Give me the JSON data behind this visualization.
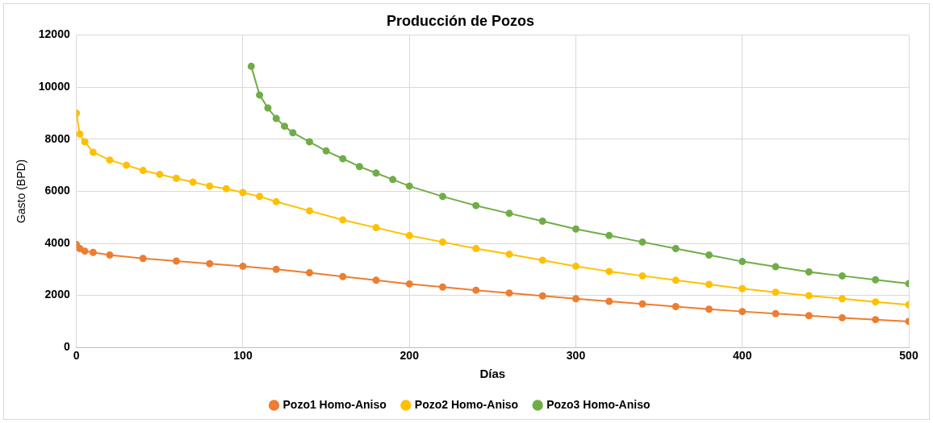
{
  "chart_data": {
    "type": "line",
    "title": "Producción de Pozos",
    "xlabel": "Días",
    "ylabel": "Gasto (BPD)",
    "xlim": [
      0,
      500
    ],
    "xticks": [
      0,
      100,
      200,
      300,
      400,
      500
    ],
    "ylim": [
      0,
      12000
    ],
    "yticks": [
      0,
      2000,
      4000,
      6000,
      8000,
      10000,
      12000
    ],
    "grid": true,
    "legend": "bottom",
    "marker": "circle",
    "line_style": "solid",
    "series": [
      {
        "name": "Pozo1 Homo-Aniso",
        "color": "#ed7d31",
        "x": [
          0,
          2,
          5,
          10,
          20,
          40,
          60,
          80,
          100,
          120,
          140,
          160,
          180,
          200,
          220,
          240,
          260,
          280,
          300,
          320,
          340,
          360,
          380,
          400,
          420,
          440,
          460,
          480,
          500
        ],
        "values": [
          3950,
          3800,
          3700,
          3650,
          3550,
          3420,
          3320,
          3220,
          3120,
          3000,
          2870,
          2720,
          2580,
          2440,
          2320,
          2200,
          2090,
          1980,
          1870,
          1770,
          1670,
          1570,
          1470,
          1380,
          1300,
          1220,
          1140,
          1070,
          1000
        ]
      },
      {
        "name": "Pozo2 Homo-Aniso",
        "color": "#ffc000",
        "x": [
          0,
          2,
          5,
          10,
          20,
          30,
          40,
          50,
          60,
          70,
          80,
          90,
          100,
          110,
          120,
          140,
          160,
          180,
          200,
          220,
          240,
          260,
          280,
          300,
          320,
          340,
          360,
          380,
          400,
          420,
          440,
          460,
          480,
          500
        ],
        "values": [
          9000,
          8200,
          7900,
          7500,
          7200,
          7000,
          6800,
          6650,
          6500,
          6350,
          6200,
          6100,
          5950,
          5800,
          5600,
          5250,
          4900,
          4600,
          4300,
          4050,
          3800,
          3580,
          3350,
          3120,
          2920,
          2750,
          2580,
          2420,
          2260,
          2120,
          1990,
          1870,
          1750,
          1640
        ]
      },
      {
        "name": "Pozo3 Homo-Aniso",
        "color": "#70ad47",
        "x": [
          105,
          110,
          115,
          120,
          125,
          130,
          140,
          150,
          160,
          170,
          180,
          190,
          200,
          220,
          240,
          260,
          280,
          300,
          320,
          340,
          360,
          380,
          400,
          420,
          440,
          460,
          480,
          500
        ],
        "values": [
          10800,
          9700,
          9200,
          8800,
          8500,
          8250,
          7900,
          7550,
          7250,
          6950,
          6700,
          6450,
          6200,
          5800,
          5450,
          5150,
          4850,
          4550,
          4300,
          4050,
          3800,
          3550,
          3300,
          3100,
          2900,
          2750,
          2600,
          2450
        ]
      }
    ]
  }
}
